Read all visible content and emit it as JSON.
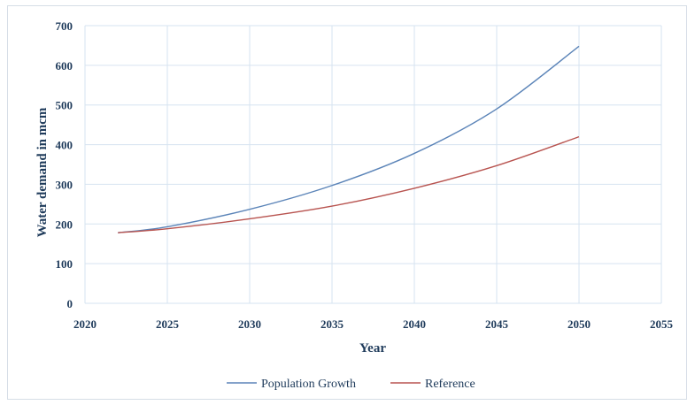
{
  "chart_data": {
    "type": "line",
    "title": "",
    "xlabel": "Year",
    "ylabel": "Water demand in mcm",
    "xlim": [
      2020,
      2055
    ],
    "ylim": [
      0,
      700
    ],
    "xticks": [
      2020,
      2025,
      2030,
      2035,
      2040,
      2045,
      2050,
      2055
    ],
    "yticks": [
      0,
      100,
      200,
      300,
      400,
      500,
      600,
      700
    ],
    "grid": true,
    "legend_position": "bottom",
    "x": [
      2022,
      2025,
      2030,
      2035,
      2040,
      2045,
      2050
    ],
    "series": [
      {
        "name": "Population Growth",
        "color": "#5b84b8",
        "values": [
          178,
          193,
          237,
          297,
          378,
          490,
          648
        ]
      },
      {
        "name": "Reference",
        "color": "#b85450",
        "values": [
          178,
          188,
          213,
          245,
          290,
          347,
          420
        ]
      }
    ]
  }
}
